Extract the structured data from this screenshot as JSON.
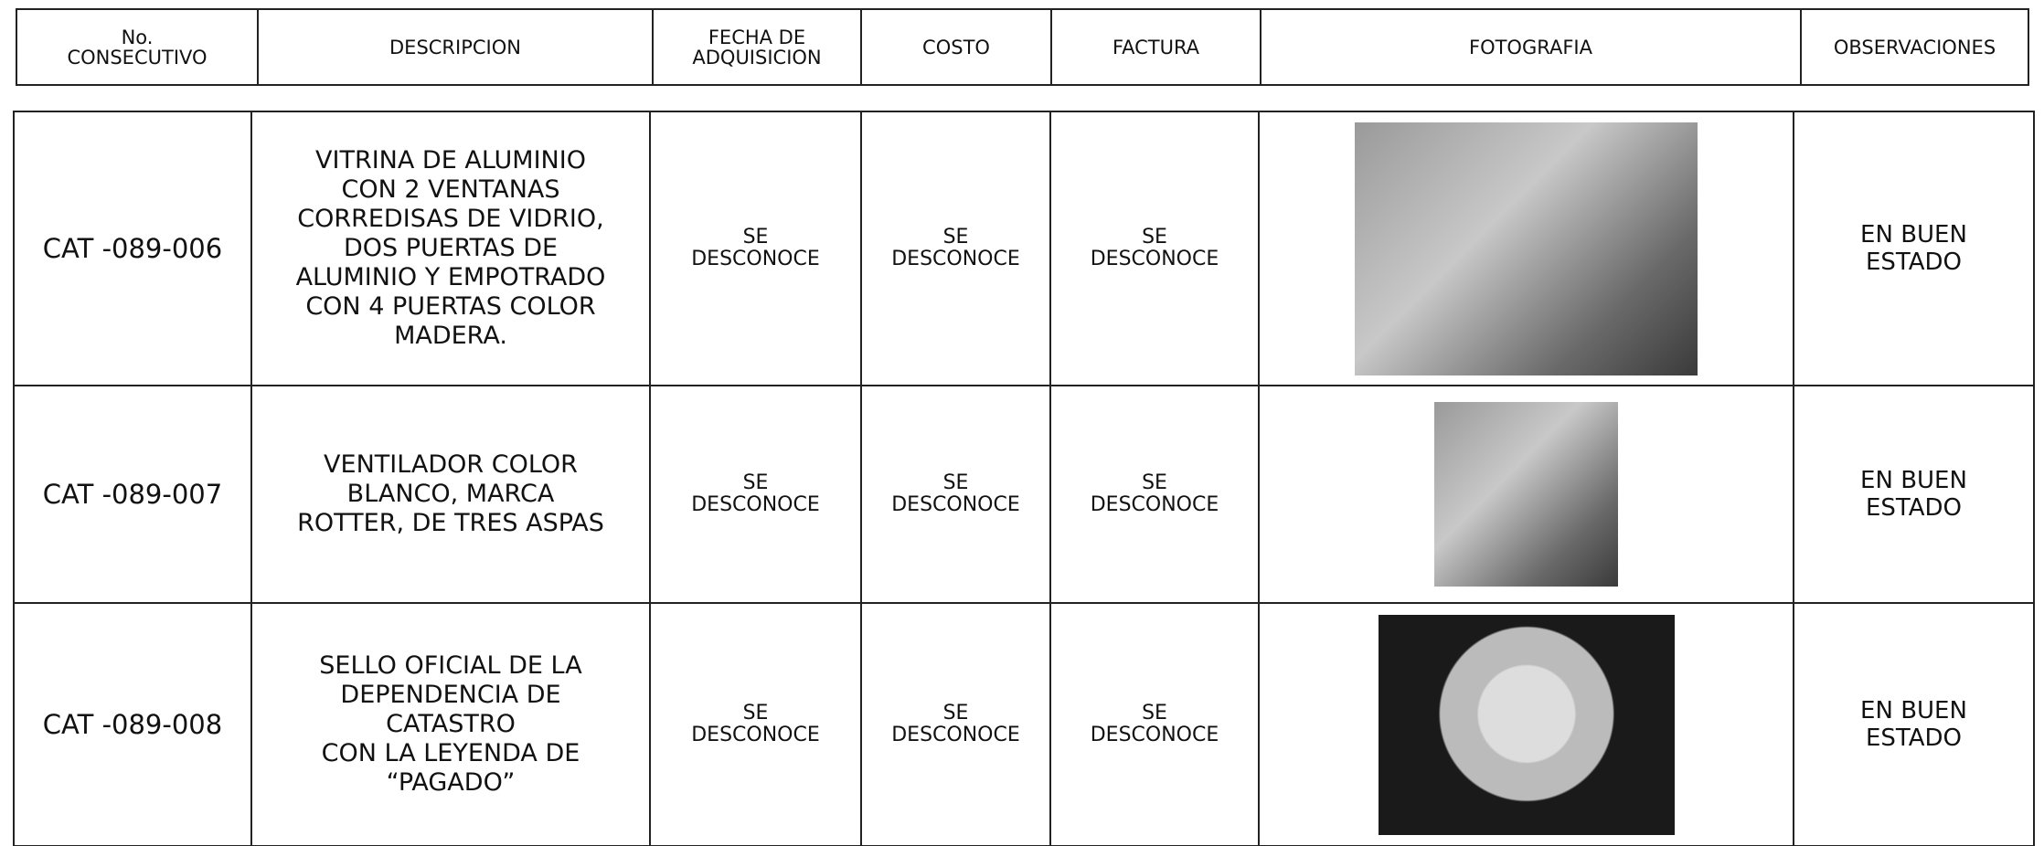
{
  "table": {
    "headers": [
      "No.\nCONSECUTIVO",
      "DESCRIPCION",
      "FECHA DE\nADQUISICION",
      "COSTO",
      "FACTURA",
      "FOTOGRAFIA",
      "OBSERVACIONES"
    ],
    "rows": [
      {
        "consecutivo": "CAT -089-006",
        "descripcion": "VITRINA DE ALUMINIO\nCON 2 VENTANAS\nCORREDISAS DE VIDRIO,\nDOS PUERTAS DE\nALUMINIO Y EMPOTRADO\nCON 4 PUERTAS COLOR\nMADERA.",
        "fecha": "SE\nDESCONOCE",
        "costo": "SE\nDESCONOCE",
        "factura": "SE\nDESCONOCE",
        "observaciones": "EN BUEN\nESTADO"
      },
      {
        "consecutivo": "CAT -089-007",
        "descripcion": "VENTILADOR COLOR\nBLANCO, MARCA\nROTTER, DE TRES ASPAS",
        "fecha": "SE\nDESCONOCE",
        "costo": "SE\nDESCONOCE",
        "factura": "SE\nDESCONOCE",
        "observaciones": "EN BUEN\nESTADO"
      },
      {
        "consecutivo": "CAT -089-008",
        "descripcion": "SELLO OFICIAL DE LA\nDEPENDENCIA DE\nCATASTRO\nCON LA LEYENDA DE\n“PAGADO”",
        "fecha": "SE\nDESCONOCE",
        "costo": "SE\nDESCONOCE",
        "factura": "SE\nDESCONOCE",
        "observaciones": "EN BUEN\nESTADO"
      }
    ]
  }
}
